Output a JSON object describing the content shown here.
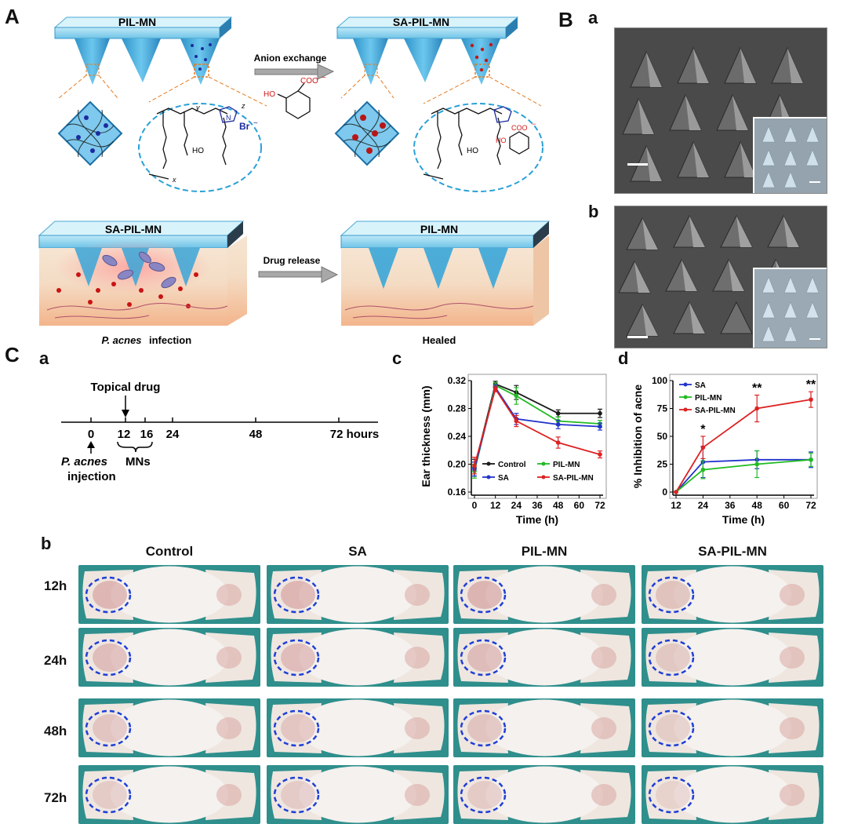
{
  "panels": {
    "A": "A",
    "B": "B",
    "C": "C",
    "Ba": "a",
    "Bb": "b",
    "Ca": "a",
    "Cb": "b",
    "Cc": "c",
    "Cd": "d"
  },
  "schematic": {
    "pil_mn": "PIL-MN",
    "sa_pil_mn": "SA-PIL-MN",
    "anion_exchange": "Anion exchange",
    "drug_release": "Drug release",
    "sa_pil_mn_bottom": "SA-PIL-MN",
    "pil_mn_bottom": "PIL-MN",
    "infection_italic": "P. acnes",
    "infection_rest": " infection",
    "healed": "Healed",
    "chem_labels": {
      "coo": "COO",
      "minus": "−",
      "ho": "HO",
      "br": "Br",
      "x": "x",
      "y": "y",
      "z": "z",
      "n": "N",
      "o": "O"
    }
  },
  "timeline": {
    "topical_drug": "Topical drug",
    "ticks": [
      "0",
      "12",
      "16",
      "24",
      "48",
      "72 hours"
    ],
    "injection_italic": "P. acnes",
    "injection_rest": "injection",
    "mns": "MNs"
  },
  "colors": {
    "Control": "#1a1a1a",
    "SA": "#2233cc",
    "PIL-MN": "#22bb22",
    "SA-PIL-MN": "#dd2222",
    "ellipse": "#1f3fd6",
    "tray": "#7fd0ee",
    "cone": "#3aa6d8",
    "skin": "#f5c9a5"
  },
  "photo_grid": {
    "columns": [
      "Control",
      "SA",
      "PIL-MN",
      "SA-PIL-MN"
    ],
    "rows": [
      "12h",
      "24h",
      "48h",
      "72h"
    ]
  },
  "chart_data": [
    {
      "type": "line",
      "id": "ear-thickness",
      "xlabel": "Time (h)",
      "ylabel": "Ear thickness (mm)",
      "x_ticks": [
        0,
        12,
        24,
        36,
        48,
        60,
        72
      ],
      "y_ticks": [
        "0.16",
        "0.20",
        "0.24",
        "0.28",
        "0.32"
      ],
      "xlim": [
        0,
        72
      ],
      "ylim": [
        0.16,
        0.32
      ],
      "legend_placement": "bottom",
      "series": [
        {
          "name": "Control",
          "x": [
            0,
            12,
            24,
            48,
            72
          ],
          "y": [
            0.195,
            0.315,
            0.303,
            0.273,
            0.273
          ],
          "err": [
            0.012,
            0.004,
            0.01,
            0.005,
            0.006
          ]
        },
        {
          "name": "PIL-MN",
          "x": [
            0,
            12,
            24,
            48,
            72
          ],
          "y": [
            0.19,
            0.313,
            0.298,
            0.262,
            0.258
          ],
          "err": [
            0.01,
            0.004,
            0.012,
            0.006,
            0.005
          ]
        },
        {
          "name": "SA",
          "x": [
            0,
            12,
            24,
            48,
            72
          ],
          "y": [
            0.193,
            0.31,
            0.265,
            0.257,
            0.254
          ],
          "err": [
            0.01,
            0.004,
            0.008,
            0.006,
            0.005
          ]
        },
        {
          "name": "SA-PIL-MN",
          "x": [
            0,
            12,
            24,
            48,
            72
          ],
          "y": [
            0.198,
            0.308,
            0.262,
            0.231,
            0.214
          ],
          "err": [
            0.012,
            0.004,
            0.008,
            0.008,
            0.005
          ]
        }
      ]
    },
    {
      "type": "line",
      "id": "inhibition",
      "xlabel": "Time (h)",
      "ylabel": "% Inhibition of acne",
      "x_ticks": [
        12,
        24,
        36,
        48,
        60,
        72
      ],
      "y_ticks": [
        "0",
        "25",
        "50",
        "75",
        "100"
      ],
      "xlim": [
        12,
        72
      ],
      "ylim": [
        0,
        100
      ],
      "legend_placement": "top-left",
      "significance": [
        {
          "x": 24,
          "label": "*"
        },
        {
          "x": 48,
          "label": "**"
        },
        {
          "x": 72,
          "label": "**"
        }
      ],
      "series": [
        {
          "name": "SA",
          "x": [
            12,
            24,
            48,
            72
          ],
          "y": [
            0,
            27,
            29,
            29
          ],
          "err": [
            0,
            14,
            8,
            7
          ]
        },
        {
          "name": "PIL-MN",
          "x": [
            12,
            24,
            48,
            72
          ],
          "y": [
            0,
            20,
            25,
            29
          ],
          "err": [
            0,
            8,
            12,
            6
          ]
        },
        {
          "name": "SA-PIL-MN",
          "x": [
            12,
            24,
            48,
            72
          ],
          "y": [
            0,
            40,
            75,
            83
          ],
          "err": [
            0,
            10,
            12,
            7
          ]
        }
      ]
    }
  ]
}
